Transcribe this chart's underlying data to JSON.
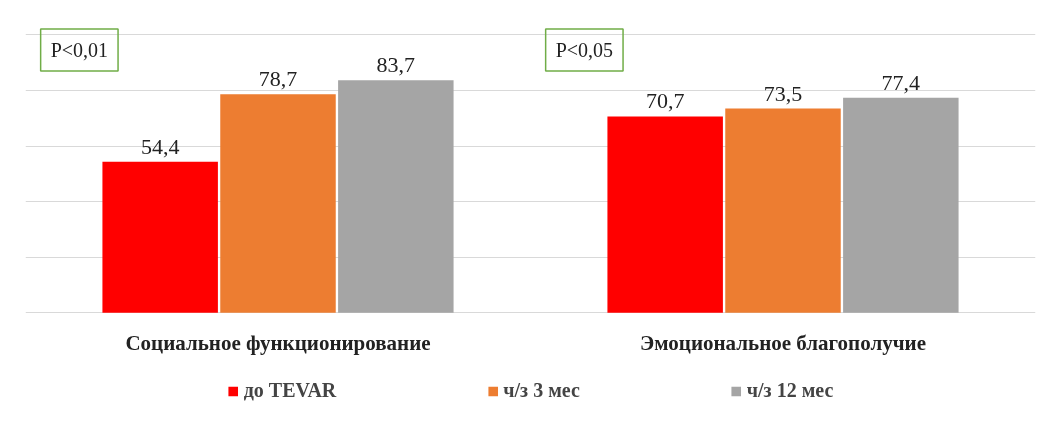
{
  "chart_data": {
    "type": "bar",
    "categories": [
      "Социальное функционирование",
      "Эмоциональное благополучие"
    ],
    "tick_labels": "x",
    "grid": "y",
    "legend": "bottom",
    "annotations": [
      "P<0,01",
      "P<0,05"
    ],
    "series": [
      {
        "name": "до TEVAR",
        "color": "#ff0000",
        "values": [
          54.4,
          70.7
        ],
        "value_labels": [
          "54,4",
          "70,7"
        ]
      },
      {
        "name": "ч/з 3 мес",
        "color": "#ed7d31",
        "values": [
          78.7,
          73.5
        ],
        "value_labels": [
          "78,7",
          "73,5"
        ]
      },
      {
        "name": "ч/з 12 мес",
        "color": "#a5a5a5",
        "values": [
          83.7,
          77.4
        ],
        "value_labels": [
          "83,7",
          "77,4"
        ]
      }
    ]
  }
}
